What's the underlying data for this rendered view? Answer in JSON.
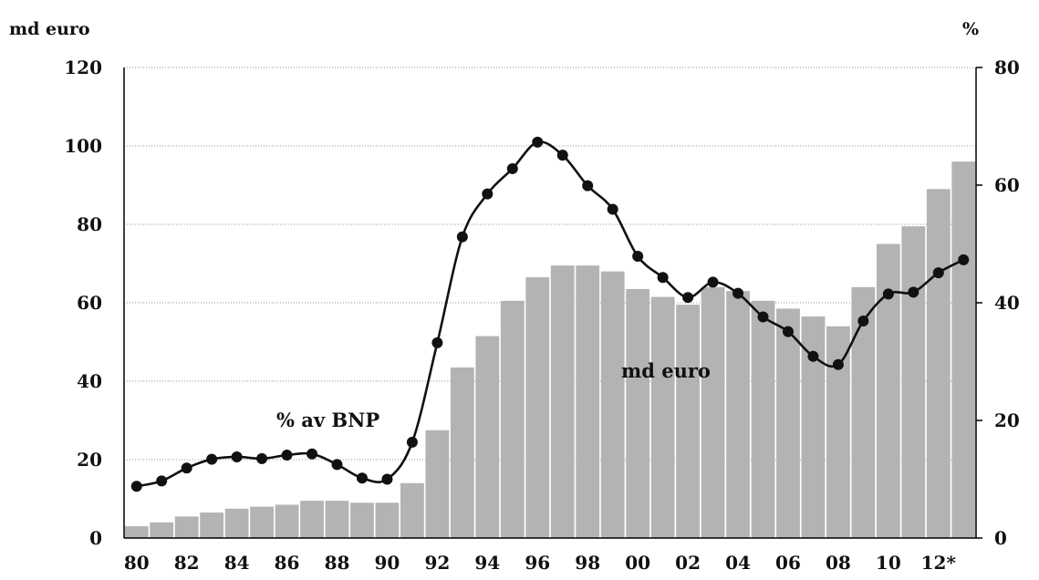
{
  "chart_data": {
    "type": "bar",
    "left_axis_title": "md euro",
    "right_axis_title": "%",
    "annotations": [
      "% av BNP",
      "md euro"
    ],
    "x_tick_labels": [
      "80",
      "82",
      "84",
      "86",
      "88",
      "90",
      "92",
      "94",
      "96",
      "98",
      "00",
      "02",
      "04",
      "06",
      "08",
      "10",
      "12*"
    ],
    "left_ticks": [
      "0",
      "20",
      "40",
      "60",
      "80",
      "100",
      "120"
    ],
    "right_ticks": [
      "0",
      "20",
      "40",
      "60",
      "80"
    ],
    "left_ylim": [
      0,
      120
    ],
    "right_ylim": [
      0,
      80
    ],
    "grid": true,
    "categories": [
      "1980",
      "1981",
      "1982",
      "1983",
      "1984",
      "1985",
      "1986",
      "1987",
      "1988",
      "1989",
      "1990",
      "1991",
      "1992",
      "1993",
      "1994",
      "1995",
      "1996",
      "1997",
      "1998",
      "1999",
      "2000",
      "2001",
      "2002",
      "2003",
      "2004",
      "2005",
      "2006",
      "2007",
      "2008",
      "2009",
      "2010",
      "2011",
      "2012",
      "2013"
    ],
    "series": [
      {
        "name": "md euro",
        "type": "bar",
        "axis": "left",
        "color": "#b3b3b3",
        "values": [
          3,
          4,
          5.5,
          6.5,
          7.5,
          8,
          8.5,
          9.5,
          9.5,
          9,
          9,
          14,
          27.5,
          43.5,
          51.5,
          60.5,
          66.5,
          69.5,
          69.5,
          68,
          63.5,
          61.5,
          59.5,
          64,
          63,
          60.5,
          58.5,
          56.5,
          54,
          64,
          75,
          79.5,
          89,
          96
        ]
      },
      {
        "name": "% av BNP",
        "type": "line",
        "axis": "right",
        "color": "#111111",
        "values": [
          8.8,
          9.7,
          11.9,
          13.4,
          13.8,
          13.5,
          14.1,
          14.3,
          12.5,
          10.2,
          10,
          16.3,
          33.2,
          51.2,
          58.5,
          62.8,
          67.3,
          65.1,
          59.9,
          55.9,
          47.9,
          44.3,
          40.9,
          43.5,
          41.6,
          37.6,
          35.1,
          30.9,
          29.5,
          36.9,
          41.5,
          41.8,
          45.1,
          47.3
        ]
      }
    ]
  }
}
